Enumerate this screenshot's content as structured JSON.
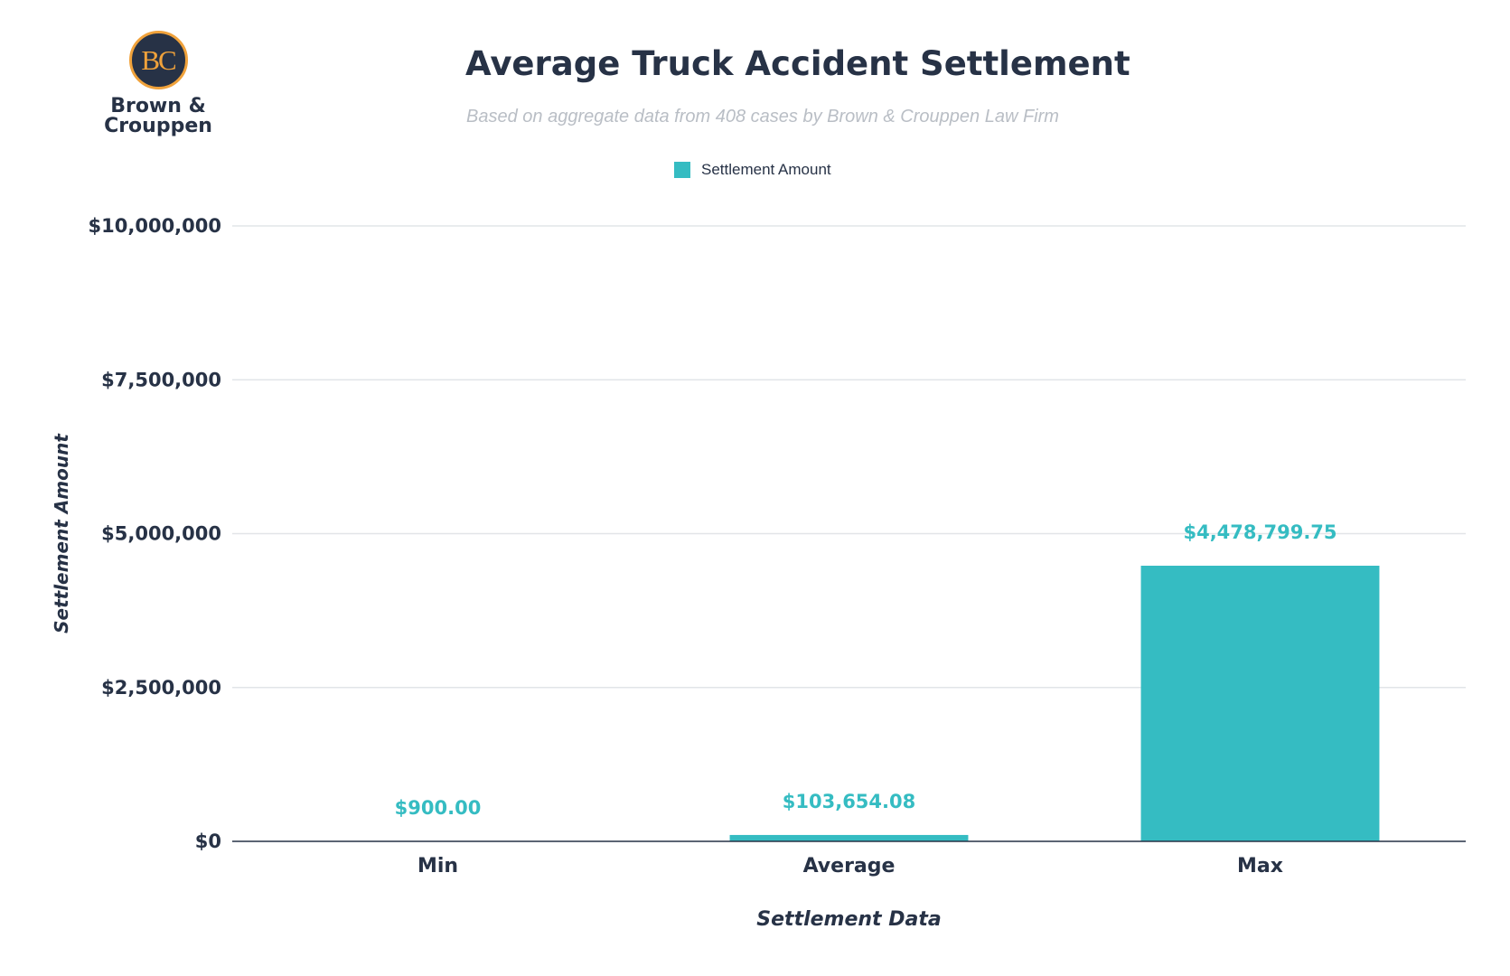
{
  "logo": {
    "initials": "BC",
    "line1": "Brown &",
    "line2": "Crouppen"
  },
  "chart_data": {
    "type": "bar",
    "title": "Average Truck Accident Settlement",
    "subtitle": "Based on aggregate data from 408 cases by Brown & Crouppen Law Firm",
    "xlabel": "Settlement Data",
    "ylabel": "Settlement Amount",
    "categories": [
      "Min",
      "Average",
      "Max"
    ],
    "series": [
      {
        "name": "Settlement Amount",
        "values": [
          900,
          103654.08,
          4478799.75
        ],
        "data_labels": [
          "$900.00",
          "$103,654.08",
          "$4,478,799.75"
        ],
        "color": "#35bcc2"
      }
    ],
    "ylim": [
      0,
      10000000
    ],
    "yticks": [
      0,
      2500000,
      5000000,
      7500000,
      10000000
    ],
    "ytick_labels": [
      "$0",
      "$2,500,000",
      "$5,000,000",
      "$7,500,000",
      "$10,000,000"
    ],
    "grid": true,
    "legend_position": "top-center"
  },
  "colors": {
    "bar": "#35bcc2",
    "text": "#273246",
    "grid": "#e2e5e8",
    "subtitle": "#b9bec5",
    "logo_ring": "#f0a23b"
  }
}
